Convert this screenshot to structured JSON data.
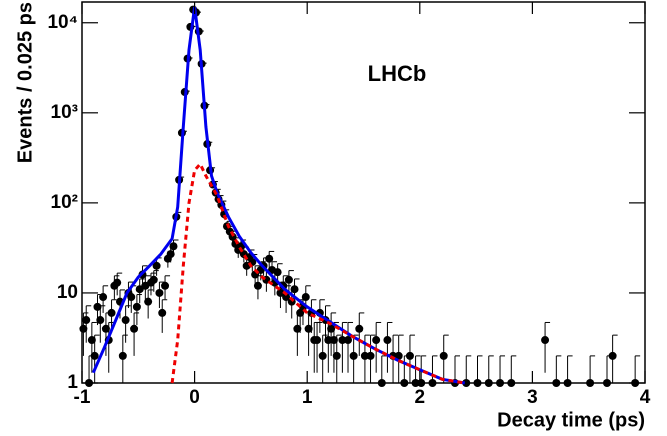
{
  "chart_data": {
    "type": "scatter",
    "text": "LHCb",
    "x_label": "Decay time (ps)",
    "y_label": "Events / 0.025 ps",
    "xlim": [
      -1,
      4
    ],
    "xticks": [
      -1,
      0,
      1,
      2,
      3,
      4
    ],
    "ylim": [
      1,
      17000
    ],
    "log_y": true,
    "yticks": [
      1,
      10,
      {
        "value": 100,
        "label": "10²"
      },
      {
        "value": 1000,
        "label": "10³"
      },
      {
        "value": 10000,
        "label": "10⁴"
      }
    ],
    "series": [
      {
        "type": "scatter",
        "color": "#000000",
        "x": [
          -0.9875,
          -0.9625,
          -0.9375,
          -0.9125,
          -0.8875,
          -0.8625,
          -0.8375,
          -0.8125,
          -0.7875,
          -0.7625,
          -0.7375,
          -0.7125,
          -0.6875,
          -0.6625,
          -0.6375,
          -0.6125,
          -0.5875,
          -0.5625,
          -0.5375,
          -0.5125,
          -0.4875,
          -0.4625,
          -0.4375,
          -0.4125,
          -0.3875,
          -0.3625,
          -0.3375,
          -0.3125,
          -0.2875,
          -0.2625,
          -0.2375,
          -0.2125,
          -0.1875,
          -0.1625,
          -0.1375,
          -0.1125,
          -0.0875,
          -0.0625,
          -0.0375,
          -0.0125,
          0.0125,
          0.0375,
          0.0625,
          0.0875,
          0.1125,
          0.1375,
          0.1625,
          0.1875,
          0.2125,
          0.2375,
          0.2625,
          0.2875,
          0.3125,
          0.3375,
          0.3625,
          0.3875,
          0.4125,
          0.4375,
          0.4625,
          0.4875,
          0.5125,
          0.5375,
          0.5625,
          0.5875,
          0.6125,
          0.6375,
          0.6625,
          0.6875,
          0.7125,
          0.7375,
          0.7625,
          0.7875,
          0.8125,
          0.8375,
          0.8625,
          0.8875,
          0.9125,
          0.9375,
          0.9625,
          0.9875,
          1.0125,
          1.0375,
          1.0625,
          1.0875,
          1.1125,
          1.1375,
          1.1625,
          1.1875,
          1.2125,
          1.2375,
          1.2625,
          1.3125,
          1.3625,
          1.4125,
          1.4625,
          1.5125,
          1.5625,
          1.6125,
          1.6625,
          1.7125,
          1.7625,
          1.8125,
          1.8625,
          1.9125,
          1.9625,
          2.0125,
          2.1125,
          2.2125,
          2.3125,
          2.4125,
          2.5125,
          2.6125,
          2.7125,
          2.8125,
          3.1125,
          3.2125,
          3.3125,
          3.5125,
          3.6625,
          3.7125,
          3.9125
        ],
        "values": [
          4,
          5,
          1,
          3,
          2,
          7,
          5,
          9,
          4,
          3,
          6,
          12,
          13,
          8,
          2,
          5,
          10,
          9,
          4,
          7,
          11,
          16,
          12,
          8,
          13,
          14,
          20,
          10,
          6,
          12,
          24,
          27,
          33,
          70,
          180,
          600,
          1700,
          4000,
          9000,
          14000,
          13000,
          8000,
          3500,
          1200,
          450,
          230,
          160,
          130,
          110,
          95,
          75,
          55,
          48,
          42,
          35,
          30,
          33,
          27,
          20,
          25,
          22,
          16,
          12,
          18,
          20,
          14,
          24,
          18,
          13,
          17,
          10,
          12,
          9,
          14,
          8,
          11,
          4,
          6,
          7,
          9,
          4,
          6,
          3,
          3,
          6,
          2,
          5,
          3,
          4,
          3,
          2,
          3,
          3,
          2,
          4,
          2,
          2,
          3,
          1,
          3,
          2,
          2,
          1,
          2,
          1,
          1,
          1,
          2,
          1,
          1,
          1,
          1,
          1,
          1,
          3,
          1,
          1,
          1,
          1,
          2,
          1
        ],
        "errors": [
          2,
          2.2,
          1,
          1.7,
          1.4,
          2.6,
          2.2,
          3,
          2,
          1.7,
          2.4,
          3.5,
          3.6,
          2.8,
          1.4,
          2.2,
          3.2,
          3,
          2,
          2.6,
          3.3,
          4,
          3.5,
          2.8,
          3.6,
          3.7,
          4.5,
          3.2,
          2.4,
          3.5,
          4.9,
          5.2,
          5.7,
          8.4,
          13.4,
          24.5,
          41,
          63,
          95,
          118,
          114,
          89,
          59,
          35,
          21,
          15.2,
          12.6,
          11.4,
          10.5,
          9.7,
          8.7,
          7.4,
          6.9,
          6.5,
          5.9,
          5.5,
          5.7,
          5.2,
          4.5,
          5,
          4.7,
          4,
          3.5,
          4.2,
          4.5,
          3.7,
          4.9,
          4.2,
          3.6,
          4.1,
          3.2,
          3.5,
          3,
          3.7,
          2.8,
          3.3,
          2,
          2.4,
          2.6,
          3,
          2,
          2.4,
          1.7,
          1.7,
          2.4,
          1.4,
          2.2,
          1.7,
          2,
          1.7,
          1.4,
          1.7,
          1.7,
          1.4,
          2,
          1.4,
          1.4,
          1.7,
          1,
          1.7,
          1.4,
          1.4,
          1,
          1.4,
          1,
          1,
          1,
          1.4,
          1,
          1,
          1,
          1,
          1,
          1,
          1.7,
          1,
          1,
          1,
          1,
          1.4,
          1
        ]
      },
      {
        "type": "line",
        "color": "#0000ee",
        "x": [
          -0.9,
          -0.8,
          -0.7,
          -0.6,
          -0.5,
          -0.4,
          -0.3,
          -0.2,
          -0.15,
          -0.1,
          -0.05,
          0,
          0.05,
          0.1,
          0.15,
          0.2,
          0.3,
          0.4,
          0.5,
          0.6,
          0.8,
          1.0,
          1.2,
          1.4,
          1.6,
          1.8,
          2.0,
          2.2,
          2.4
        ],
        "values": [
          1.3,
          2.5,
          5,
          10,
          15,
          20,
          27,
          40,
          90,
          700,
          5000,
          15000,
          5000,
          700,
          200,
          130,
          70,
          42,
          28,
          20,
          11,
          7,
          4.8,
          3.3,
          2.4,
          1.8,
          1.4,
          1.1,
          1
        ]
      },
      {
        "type": "line",
        "color": "#ee0000",
        "dashed": true,
        "x": [
          -0.2,
          -0.15,
          -0.1,
          -0.05,
          0,
          0.05,
          0.1,
          0.2,
          0.3,
          0.4,
          0.5,
          0.6,
          0.8,
          1.0,
          1.2,
          1.4,
          1.6,
          1.8,
          2.0,
          2.2,
          2.4
        ],
        "values": [
          1,
          3,
          20,
          100,
          230,
          270,
          200,
          120,
          55,
          32,
          20,
          15,
          10,
          6,
          4.6,
          3.3,
          2.4,
          1.8,
          1.4,
          1.1,
          1
        ]
      }
    ]
  }
}
